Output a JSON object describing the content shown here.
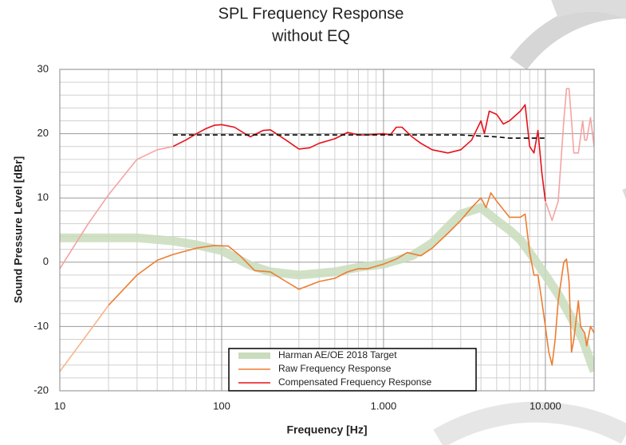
{
  "chart_data": {
    "type": "line",
    "title": "SPL Frequency Response",
    "subtitle": "without EQ",
    "x_label": "Frequency [Hz]",
    "y_label": "Sound Pressure Level [dBr]",
    "log_x": true,
    "grid": true,
    "minor_grid": true,
    "legend": "bottom",
    "xlim": [
      10,
      20000
    ],
    "ylim": [
      -20,
      30
    ],
    "xticks": [
      10,
      100,
      {
        "value": 1000,
        "label": "1.000"
      },
      {
        "value": 10000,
        "label": "10.000"
      }
    ],
    "yticks": [
      -20,
      -10,
      0,
      10,
      20,
      30
    ],
    "series": [
      {
        "name": "Harman AE/OE 2018 Target",
        "color": "#c9dcbc",
        "style": "band",
        "x": [
          10,
          20,
          30,
          50,
          70,
          100,
          150,
          200,
          300,
          500,
          700,
          1000,
          1500,
          2000,
          2500,
          3000,
          4000,
          5000,
          6000,
          7000,
          8000,
          10000,
          12000,
          14000,
          17000,
          20000
        ],
        "values": [
          3.8,
          3.8,
          3.8,
          3.3,
          2.7,
          1.8,
          -0.5,
          -1.5,
          -2,
          -1.5,
          -0.8,
          -0.3,
          1,
          3,
          5.5,
          7.5,
          8.5,
          6.5,
          5,
          3.5,
          1.5,
          -2,
          -5,
          -8,
          -12,
          -17
        ]
      },
      {
        "name": "Raw Frequency Response",
        "color": "#ed7d31",
        "style": "solid",
        "x": [
          20,
          30,
          40,
          50,
          70,
          90,
          110,
          130,
          160,
          200,
          250,
          300,
          400,
          500,
          600,
          700,
          800,
          1000,
          1200,
          1400,
          1700,
          2000,
          2500,
          3000,
          3500,
          4000,
          4300,
          4600,
          5000,
          6000,
          7000,
          7500,
          8000,
          8500,
          9000,
          9500,
          10000,
          10500,
          11000,
          11500,
          12000,
          13000,
          13500,
          14000,
          14500,
          15000,
          16000,
          16500,
          17500,
          18000,
          19000,
          20000
        ],
        "values": [
          -6.7,
          -2,
          0.3,
          1.2,
          2.2,
          2.6,
          2.5,
          1,
          -1.3,
          -1.5,
          -3,
          -4.2,
          -3,
          -2.5,
          -1.5,
          -1,
          -1,
          -0.3,
          0.5,
          1.5,
          1,
          2.2,
          4.5,
          6.5,
          8.5,
          10,
          8.5,
          10.8,
          9.5,
          7,
          7,
          7.5,
          1.5,
          -2,
          -2,
          -6,
          -10,
          -14,
          -16,
          -12,
          -6,
          0,
          0.5,
          -3,
          -14,
          -12,
          -6,
          -10,
          -11,
          -13,
          -10,
          -11
        ]
      },
      {
        "name": "Compensated Frequency Response",
        "color": "#e8101a",
        "style": "solid",
        "x": [
          50,
          60,
          70,
          80,
          90,
          100,
          120,
          150,
          180,
          200,
          250,
          300,
          350,
          400,
          500,
          600,
          700,
          800,
          1000,
          1100,
          1200,
          1300,
          1500,
          1700,
          2000,
          2500,
          3000,
          3500,
          4000,
          4200,
          4500,
          5000,
          5500,
          6000,
          7000,
          7500,
          8000,
          8500,
          9000,
          9500,
          10000
        ],
        "values": [
          18,
          19,
          20,
          20.8,
          21.3,
          21.4,
          21,
          19.5,
          20.5,
          20.6,
          19,
          17.6,
          17.8,
          18.5,
          19.2,
          20.2,
          19.8,
          19.8,
          20,
          19.8,
          21,
          21,
          19.5,
          18.5,
          17.5,
          17,
          17.5,
          19,
          22,
          20,
          23.5,
          23,
          21.5,
          22,
          23.5,
          24.5,
          18,
          17,
          20.5,
          14,
          9.5
        ]
      },
      {
        "color": "#f5a3a3",
        "style": "faded",
        "x": [
          10,
          15,
          20,
          30,
          40,
          50
        ],
        "values": [
          -1,
          6,
          10.5,
          16,
          17.5,
          18
        ]
      },
      {
        "color": "#f5a3a3",
        "style": "faded",
        "x": [
          10000,
          11000,
          12000,
          13000,
          13500,
          14000,
          14500,
          15000,
          16000,
          17000,
          17500,
          18000,
          19000,
          20000
        ],
        "values": [
          9.5,
          6.5,
          9.5,
          22,
          27,
          27,
          22,
          17,
          17,
          22,
          19,
          19,
          22.5,
          18
        ]
      },
      {
        "color": "#f8b48a",
        "style": "faded",
        "x": [
          10,
          15,
          20
        ],
        "values": [
          -17,
          -11,
          -6.7
        ]
      },
      {
        "color": "#000000",
        "style": "dashed",
        "x": [
          50,
          100,
          1000,
          3000,
          5000,
          6000,
          10000
        ],
        "values": [
          19.8,
          19.8,
          19.8,
          19.8,
          19.5,
          19.3,
          19.3
        ]
      }
    ]
  }
}
